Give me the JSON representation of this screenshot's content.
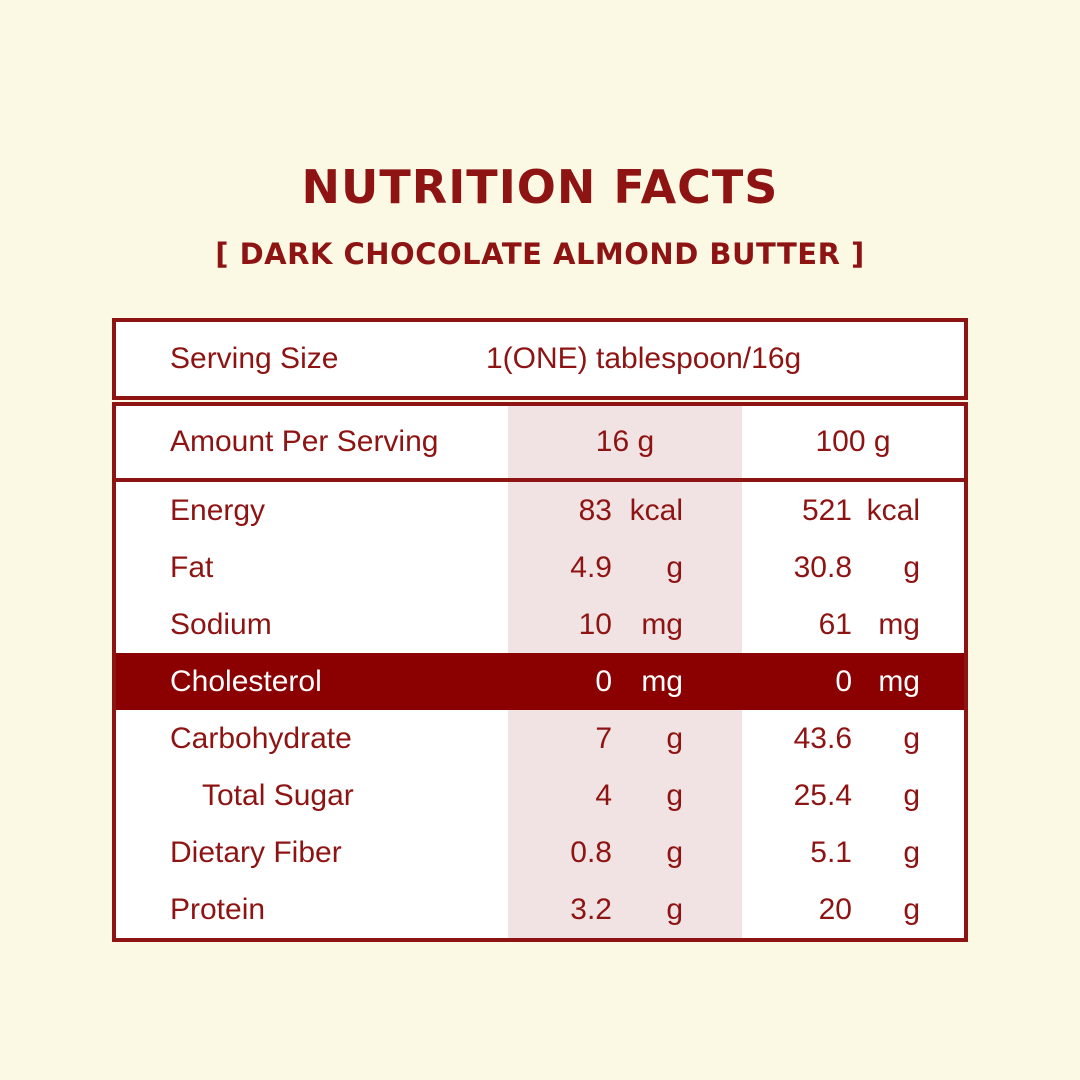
{
  "colors": {
    "background": "#FBF8E3",
    "text_red": "#8E1414",
    "highlight_band": "#8B0001",
    "highlight_column": "#F1E3E3",
    "table_background": "#FFFFFF"
  },
  "title": "NUTRITION FACTS",
  "subtitle": "[ DARK CHOCOLATE ALMOND BUTTER ]",
  "serving": {
    "label": "Serving Size",
    "value": "1(ONE) tablespoon/16g"
  },
  "table": {
    "header": {
      "label": "Amount Per Serving",
      "col_16g": "16 g",
      "col_100g": "100 g"
    },
    "rows": [
      {
        "label": "Energy",
        "indent": false,
        "highlight": false,
        "per16_value": "83",
        "per16_unit": "kcal",
        "per100_value": "521",
        "per100_unit": "kcal"
      },
      {
        "label": "Fat",
        "indent": false,
        "highlight": false,
        "per16_value": "4.9",
        "per16_unit": "g",
        "per100_value": "30.8",
        "per100_unit": "g"
      },
      {
        "label": "Sodium",
        "indent": false,
        "highlight": false,
        "per16_value": "10",
        "per16_unit": "mg",
        "per100_value": "61",
        "per100_unit": "mg"
      },
      {
        "label": "Cholesterol",
        "indent": false,
        "highlight": true,
        "per16_value": "0",
        "per16_unit": "mg",
        "per100_value": "0",
        "per100_unit": "mg"
      },
      {
        "label": "Carbohydrate",
        "indent": false,
        "highlight": false,
        "per16_value": "7",
        "per16_unit": "g",
        "per100_value": "43.6",
        "per100_unit": "g"
      },
      {
        "label": "Total Sugar",
        "indent": true,
        "highlight": false,
        "per16_value": "4",
        "per16_unit": "g",
        "per100_value": "25.4",
        "per100_unit": "g"
      },
      {
        "label": "Dietary Fiber",
        "indent": false,
        "highlight": false,
        "per16_value": "0.8",
        "per16_unit": "g",
        "per100_value": "5.1",
        "per100_unit": "g"
      },
      {
        "label": "Protein",
        "indent": false,
        "highlight": false,
        "per16_value": "3.2",
        "per16_unit": "g",
        "per100_value": "20",
        "per100_unit": "g"
      }
    ]
  }
}
